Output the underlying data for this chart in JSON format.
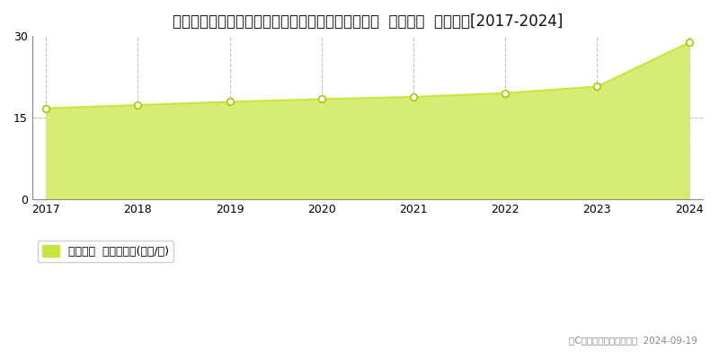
{
  "title": "宮城県仙台市青葉区双葉ケ丘１丁目１１８番１０４  基準地価  地価推移[2017-2024]",
  "years": [
    2017,
    2018,
    2019,
    2020,
    2021,
    2022,
    2023,
    2024
  ],
  "values": [
    16.7,
    17.3,
    17.9,
    18.4,
    18.8,
    19.5,
    20.7,
    28.8
  ],
  "ylim": [
    0,
    30
  ],
  "yticks": [
    0,
    15,
    30
  ],
  "line_color": "#c8e641",
  "fill_color": "#d6ec72",
  "marker_facecolor": "#ffffff",
  "marker_edgecolor": "#aac800",
  "grid_color": "#bbbbbb",
  "bg_color": "#ffffff",
  "legend_label": "基準地価  平均坪単価(万円/坪)",
  "legend_color": "#c8e641",
  "copyright_text": "（C）土地価格ドットコム  2024-09-19",
  "title_fontsize": 12,
  "tick_fontsize": 9,
  "legend_fontsize": 9
}
